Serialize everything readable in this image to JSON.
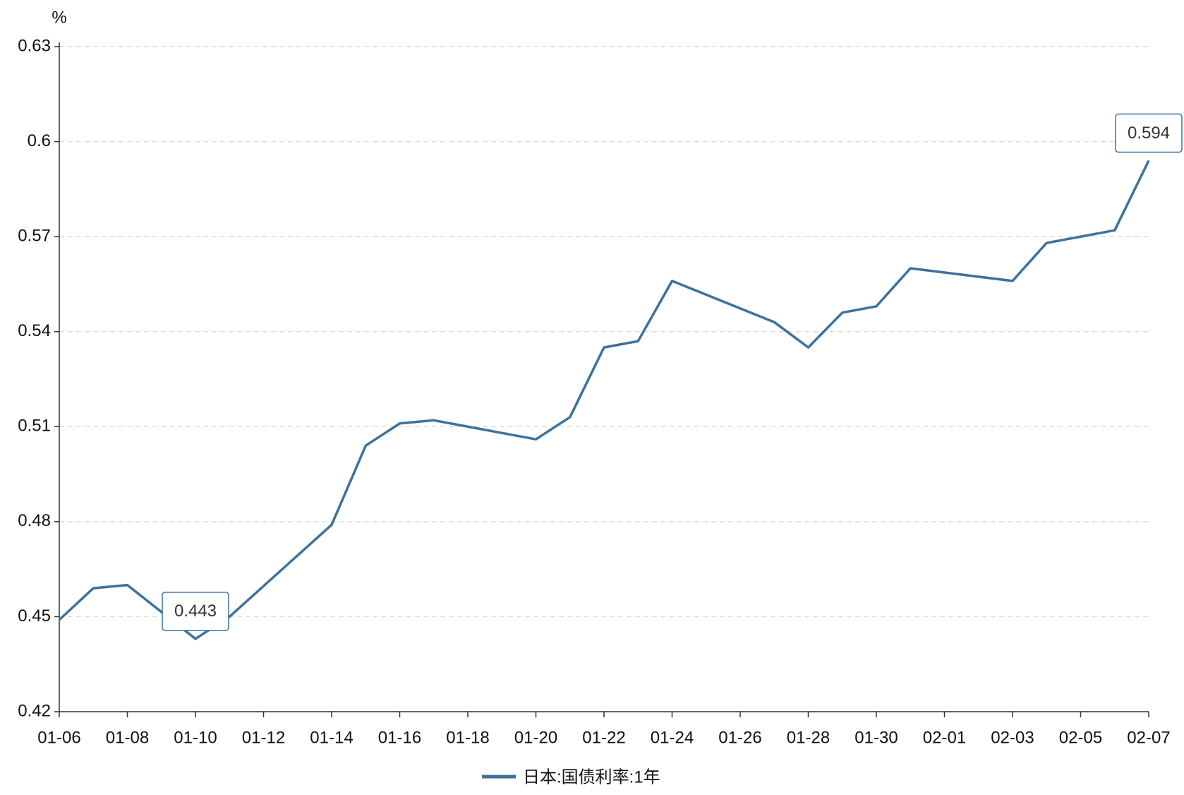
{
  "chart_data": {
    "type": "line",
    "y_unit": "%",
    "x": [
      "01-06",
      "01-07",
      "01-08",
      "01-10",
      "01-11",
      "01-14",
      "01-15",
      "01-16",
      "01-17",
      "01-20",
      "01-21",
      "01-22",
      "01-23",
      "01-24",
      "01-27",
      "01-28",
      "01-29",
      "01-30",
      "01-31",
      "02-03",
      "02-04",
      "02-06",
      "02-07"
    ],
    "series": [
      {
        "name": "日本:国债利率:1年",
        "color": "#3d729b",
        "values": [
          0.449,
          0.459,
          0.46,
          0.443,
          0.45,
          0.479,
          0.504,
          0.511,
          0.512,
          0.506,
          0.513,
          0.535,
          0.537,
          0.556,
          0.543,
          0.535,
          0.546,
          0.548,
          0.56,
          0.556,
          0.568,
          0.572,
          0.594
        ]
      }
    ],
    "xlim": [
      "01-06",
      "02-07"
    ],
    "xticks": [
      "01-06",
      "01-08",
      "01-10",
      "01-12",
      "01-14",
      "01-16",
      "01-18",
      "01-20",
      "01-22",
      "01-24",
      "01-26",
      "01-28",
      "01-30",
      "02-01",
      "02-03",
      "02-05",
      "02-07"
    ],
    "ylim": [
      0.42,
      0.63
    ],
    "yticks": [
      0.42,
      0.45,
      0.48,
      0.51,
      0.54,
      0.57,
      0.6,
      0.63
    ],
    "grid": true,
    "mark_extremes": true,
    "legend": "bottom"
  }
}
